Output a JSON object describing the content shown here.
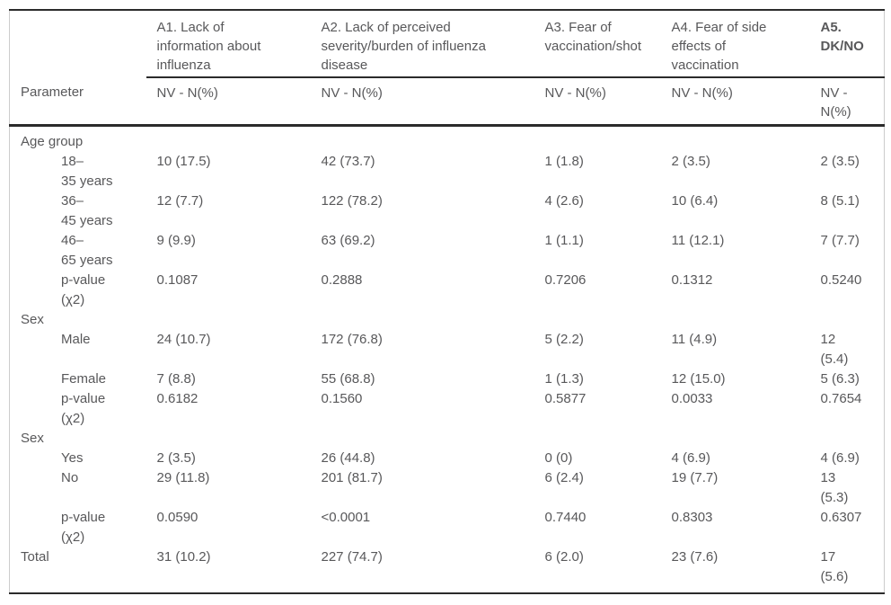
{
  "header": {
    "param_label": "Parameter",
    "columns": [
      {
        "title": "A1. Lack of\ninformation about\ninfluenza",
        "sub": "NV - N(%)",
        "bold": false
      },
      {
        "title": "A2. Lack of perceived\nseverity/burden of influenza\ndisease",
        "sub": "NV - N(%)",
        "bold": false
      },
      {
        "title": "A3. Fear of\nvaccination/shot",
        "sub": "NV - N(%)",
        "bold": false
      },
      {
        "title": "A4. Fear of side\neffects of\nvaccination",
        "sub": "NV - N(%)",
        "bold": false
      },
      {
        "title": "A5.\nDK/NO",
        "sub": "NV -\nN(%)",
        "bold": true
      }
    ]
  },
  "rows": [
    {
      "type": "section",
      "label": "Age group"
    },
    {
      "type": "data",
      "label": "18–\n35 years",
      "values": [
        "10 (17.5)",
        "42 (73.7)",
        "1 (1.8)",
        "2 (3.5)",
        "2 (3.5)"
      ]
    },
    {
      "type": "data",
      "label": "36–\n45 years",
      "values": [
        "12 (7.7)",
        "122 (78.2)",
        "4 (2.6)",
        "10 (6.4)",
        "8 (5.1)"
      ]
    },
    {
      "type": "data",
      "label": "46–\n65 years",
      "values": [
        "9 (9.9)",
        "63 (69.2)",
        "1 (1.1)",
        "11 (12.1)",
        "7 (7.7)"
      ]
    },
    {
      "type": "data",
      "label": "p-value\n(χ2)",
      "values": [
        "0.1087",
        "0.2888",
        "0.7206",
        "0.1312",
        "0.5240"
      ]
    },
    {
      "type": "section",
      "label": "Sex"
    },
    {
      "type": "data",
      "label": "Male",
      "values": [
        "24 (10.7)",
        "172 (76.8)",
        "5 (2.2)",
        "11 (4.9)",
        "12\n(5.4)"
      ]
    },
    {
      "type": "data",
      "label": "Female",
      "values": [
        "7 (8.8)",
        "55 (68.8)",
        "1 (1.3)",
        "12 (15.0)",
        "5 (6.3)"
      ]
    },
    {
      "type": "data",
      "label": "p-value\n(χ2)",
      "values": [
        "0.6182",
        "0.1560",
        "0.5877",
        "0.0033",
        "0.7654"
      ]
    },
    {
      "type": "section",
      "label": "Sex"
    },
    {
      "type": "data",
      "label": "Yes",
      "values": [
        "2 (3.5)",
        "26 (44.8)",
        "0 (0)",
        "4 (6.9)",
        "4 (6.9)"
      ]
    },
    {
      "type": "data",
      "label": "No",
      "values": [
        "29 (11.8)",
        "201 (81.7)",
        "6 (2.4)",
        "19 (7.7)",
        "13\n(5.3)"
      ]
    },
    {
      "type": "data",
      "label": "p-value\n(χ2)",
      "values": [
        "0.0590",
        "<0.0001",
        "0.7440",
        "0.8303",
        "0.6307"
      ]
    },
    {
      "type": "total",
      "label": "Total",
      "values": [
        "31 (10.2)",
        "227 (74.7)",
        "6 (2.0)",
        "23 (7.6)",
        "17\n(5.6)"
      ]
    }
  ],
  "colors": {
    "text": "#58585a",
    "rule": "#2b2b2b",
    "edge": "#cccccc"
  }
}
